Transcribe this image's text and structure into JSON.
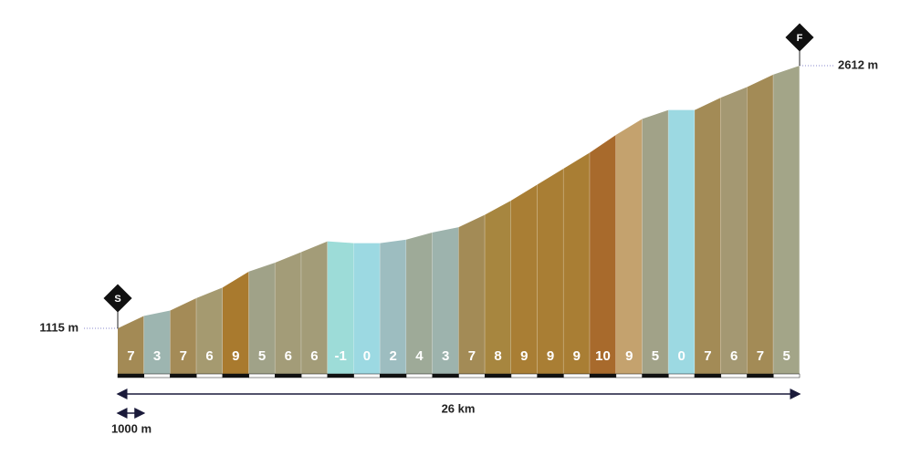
{
  "chart_data": {
    "type": "climb-profile",
    "start_marker": "S",
    "finish_marker": "F",
    "start_elevation": {
      "value": 1115,
      "label": "1115 m"
    },
    "finish_elevation": {
      "value": 2612,
      "label": "2612 m"
    },
    "distance": {
      "value": 26,
      "label": "26 km"
    },
    "scale": {
      "value": 1000,
      "label": "1000 m"
    },
    "values": [
      7,
      3,
      7,
      6,
      9,
      5,
      6,
      6,
      -1,
      0,
      2,
      4,
      3,
      7,
      8,
      9,
      9,
      9,
      10,
      9,
      5,
      0,
      7,
      6,
      7,
      5
    ],
    "colors": [
      "#a38a55",
      "#9db5b0",
      "#a48b57",
      "#a59a70",
      "#a97a2e",
      "#a0a288",
      "#a39c78",
      "#a39c78",
      "#9ddcd8",
      "#9cd9e2",
      "#9dbdc0",
      "#9eaa98",
      "#9db3ad",
      "#a38b56",
      "#a7863f",
      "#a97e34",
      "#a97e34",
      "#a97e34",
      "#a86a2c",
      "#c4a26e",
      "#a1a288",
      "#9cd9e2",
      "#a38b56",
      "#a49872",
      "#a38b56",
      "#a3a588"
    ]
  }
}
